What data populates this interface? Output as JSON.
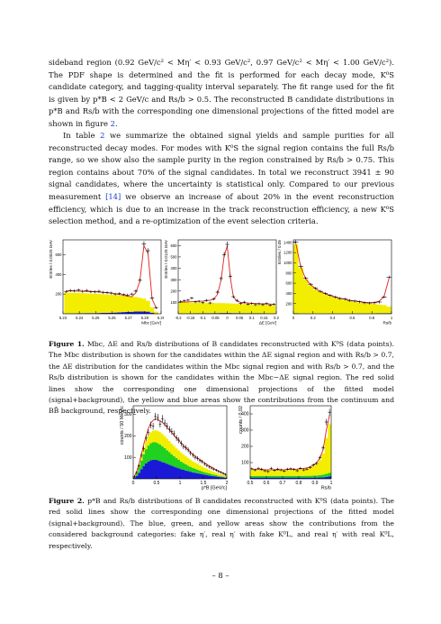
{
  "text": {
    "p1": "sideband region (0.92 GeV/c² < Mη′ < 0.93 GeV/c², 0.97 GeV/c² < Mη′ < 1.00 GeV/c²). The PDF shape is determined and the fit is performed for each decay mode, K⁰S candidate category, and tagging-quality interval separately. The fit range used for the fit is given by p*B < 2 GeV/c and Rs/b > 0.5. The reconstructed B candidate distributions in p*B and Rs/b with the corresponding one dimensional projections of the fitted model are shown in figure",
    "p1_ref": "2",
    "p1_end": ".",
    "p2_a": "In table",
    "p2_ref": "2",
    "p2_b": "we summarize the obtained signal yields and sample purities for all reconstructed decay modes. For modes with K⁰S the signal region contains the full Rs/b range, so we show also the sample purity in the region constrained by Rs/b > 0.75. This region contains about 70% of the signal candidates. In total we reconstruct 3941 ± 90 signal candidates, where the uncertainty is statistical only. Compared to our previous measurement",
    "p2_ref2": "[14]",
    "p2_c": "we observe an increase of about 20% in the event reconstruction efficiency, which is due to an increase in the track reconstruction efficiency, a new K⁰S selection method, and a re-optimization of the event selection criteria.",
    "fig1_label": "Figure 1.",
    "fig1_caption": "Mbc, ΔE and Rs/b distributions of B candidates reconstructed with K⁰S (data points). The Mbc distribution is shown for the candidates within the ΔE signal region and with Rs/b > 0.7, the ΔE distribution for the candidates within the Mbc signal region and with Rs/b > 0.7, and the Rs/b distribution is shown for the candidates within the Mbc−ΔE signal region. The red solid lines show the corresponding one dimensional projections of the fitted model (signal+background), the yellow and blue areas show the contributions from the continuum and BB̄ background, respectively.",
    "fig2_label": "Figure 2.",
    "fig2_caption": "p*B and Rs/b distributions of B candidates reconstructed with K⁰S (data points). The red solid lines show the corresponding one dimensional projections of the fitted model (signal+background). The blue, green, and yellow areas show the contributions from the considered background categories: fake η′, real η′ with fake K⁰L, and real η′ with real K⁰L, respectively.",
    "page_number": "– 8 –"
  },
  "colors": {
    "signal_fit": "#e0201e",
    "continuum": "#f3ee00",
    "bbbar": "#1a1ad6",
    "fake_etaprime": "#1a1ad6",
    "fake_KL": "#1fd21f",
    "real_KL": "#f3ee00",
    "ref_link": "#1a3fbf"
  },
  "chart_data": [
    {
      "type": "line",
      "ylabel": "Entries / 0.0025 GeV",
      "xlabel": "Mbc [GeV]",
      "xlim": [
        5.23,
        5.29
      ],
      "ylim": [
        0,
        750
      ],
      "xticks": [
        "5.23",
        "5.24",
        "5.25",
        "5.26",
        "5.27",
        "5.28",
        "5.29"
      ],
      "yticks": [
        "200",
        "400",
        "600"
      ],
      "x": [
        5.232,
        5.2345,
        5.237,
        5.2395,
        5.242,
        5.2445,
        5.247,
        5.2495,
        5.252,
        5.2545,
        5.257,
        5.2595,
        5.262,
        5.2645,
        5.267,
        5.2695,
        5.272,
        5.2745,
        5.277,
        5.2795,
        5.282,
        5.2845,
        5.287
      ],
      "data": [
        225,
        236,
        232,
        240,
        228,
        236,
        224,
        222,
        228,
        217,
        214,
        210,
        200,
        204,
        195,
        190,
        200,
        230,
        340,
        710,
        640,
        160,
        62
      ],
      "fit": [
        232,
        232,
        231,
        230,
        229,
        228,
        226,
        224,
        221,
        218,
        214,
        209,
        203,
        196,
        188,
        179,
        172,
        210,
        330,
        690,
        610,
        150,
        60
      ],
      "continuum": [
        210,
        210,
        208,
        206,
        204,
        202,
        199,
        196,
        193,
        190,
        186,
        182,
        177,
        172,
        166,
        160,
        154,
        148,
        140,
        130,
        110,
        55,
        18
      ],
      "bbbar": [
        4,
        4,
        4,
        5,
        5,
        6,
        6,
        7,
        8,
        9,
        10,
        11,
        13,
        15,
        17,
        19,
        21,
        23,
        24,
        24,
        22,
        12,
        4
      ]
    },
    {
      "type": "line",
      "ylabel": "Entries / 0.0125 GeV",
      "xlabel": "ΔE [GeV]",
      "xlim": [
        -0.2,
        0.2
      ],
      "ylim": [
        0,
        650
      ],
      "xticks": [
        "-0.2",
        "-0.15",
        "-0.1",
        "-0.05",
        "0",
        "0.05",
        "0.1",
        "0.15",
        "0.2"
      ],
      "yticks": [
        "100",
        "200",
        "300",
        "400",
        "500",
        "600"
      ],
      "x": [
        -0.19,
        -0.175,
        -0.16,
        -0.145,
        -0.13,
        -0.115,
        -0.1,
        -0.085,
        -0.07,
        -0.055,
        -0.04,
        -0.025,
        -0.0125,
        0,
        0.0125,
        0.025,
        0.04,
        0.055,
        0.07,
        0.085,
        0.1,
        0.115,
        0.13,
        0.145,
        0.16,
        0.175,
        0.19
      ],
      "data": [
        108,
        115,
        120,
        138,
        105,
        110,
        98,
        118,
        95,
        130,
        190,
        310,
        520,
        610,
        330,
        150,
        118,
        90,
        102,
        85,
        92,
        80,
        88,
        80,
        90,
        76,
        84
      ],
      "fit": [
        102,
        103,
        104,
        106,
        108,
        110,
        112,
        115,
        120,
        130,
        170,
        300,
        510,
        595,
        320,
        150,
        110,
        100,
        96,
        94,
        92,
        90,
        89,
        88,
        87,
        86,
        85
      ],
      "continuum": [
        98,
        97,
        96,
        95,
        94,
        93,
        92,
        91,
        90,
        89,
        88,
        87,
        86,
        85,
        84,
        83,
        82,
        81,
        80,
        79,
        78,
        77,
        76,
        75,
        74,
        73,
        72
      ],
      "bbbar": [
        3,
        3,
        3,
        3,
        4,
        4,
        4,
        5,
        5,
        6,
        6,
        7,
        7,
        7,
        7,
        6,
        6,
        5,
        5,
        5,
        4,
        4,
        4,
        4,
        3,
        3,
        3
      ]
    },
    {
      "type": "line",
      "ylabel": "Entries / 0.05",
      "xlabel": "Rs/b",
      "xlim": [
        0,
        1
      ],
      "ylim": [
        0,
        1450
      ],
      "xticks": [
        "0",
        "0.2",
        "0.4",
        "0.6",
        "0.8",
        "1"
      ],
      "yticks": [
        "200",
        "400",
        "600",
        "800",
        "1000",
        "1200",
        "1400"
      ],
      "x": [
        0.025,
        0.075,
        0.125,
        0.175,
        0.225,
        0.275,
        0.325,
        0.375,
        0.425,
        0.475,
        0.525,
        0.575,
        0.625,
        0.675,
        0.725,
        0.775,
        0.825,
        0.875,
        0.925,
        0.975
      ],
      "data": [
        1410,
        930,
        700,
        580,
        500,
        440,
        400,
        360,
        330,
        300,
        290,
        260,
        250,
        235,
        215,
        210,
        215,
        230,
        330,
        720
      ],
      "fit": [
        1380,
        920,
        690,
        570,
        495,
        440,
        395,
        360,
        330,
        305,
        285,
        265,
        250,
        238,
        225,
        218,
        222,
        245,
        345,
        700
      ],
      "continuum": [
        1350,
        900,
        670,
        550,
        475,
        420,
        375,
        340,
        310,
        285,
        265,
        245,
        230,
        215,
        200,
        190,
        185,
        175,
        160,
        130
      ],
      "bbbar": [
        8,
        6,
        6,
        5,
        5,
        5,
        5,
        5,
        5,
        5,
        5,
        5,
        5,
        5,
        6,
        6,
        7,
        8,
        9,
        10
      ]
    },
    {
      "type": "area",
      "ylabel": "counts / 50 MeV/c",
      "xlabel": "p*B [GeV/c]",
      "xlim": [
        0,
        2
      ],
      "ylim": [
        0,
        340
      ],
      "xticks": [
        "0",
        "0.5",
        "1",
        "1.5",
        "2"
      ],
      "yticks": [
        "100",
        "200",
        "300"
      ],
      "x": [
        0.025,
        0.075,
        0.125,
        0.175,
        0.225,
        0.275,
        0.325,
        0.375,
        0.425,
        0.475,
        0.525,
        0.575,
        0.625,
        0.675,
        0.725,
        0.775,
        0.825,
        0.875,
        0.925,
        0.975,
        1.025,
        1.075,
        1.125,
        1.175,
        1.225,
        1.275,
        1.325,
        1.375,
        1.425,
        1.475,
        1.525,
        1.575,
        1.625,
        1.675,
        1.725,
        1.775,
        1.825,
        1.875,
        1.925,
        1.975
      ],
      "data": [
        10,
        30,
        60,
        110,
        140,
        190,
        215,
        250,
        245,
        290,
        285,
        255,
        280,
        260,
        245,
        230,
        220,
        210,
        190,
        180,
        165,
        150,
        145,
        135,
        120,
        110,
        100,
        95,
        85,
        80,
        70,
        62,
        55,
        50,
        45,
        40,
        34,
        30,
        25,
        20
      ],
      "fit": [
        12,
        35,
        70,
        115,
        160,
        200,
        235,
        260,
        272,
        278,
        276,
        270,
        262,
        252,
        240,
        228,
        215,
        202,
        190,
        178,
        166,
        155,
        144,
        134,
        124,
        114,
        105,
        97,
        89,
        81,
        74,
        67,
        60,
        54,
        48,
        42,
        36,
        31,
        26,
        21
      ],
      "fake_etaprime": [
        5,
        14,
        28,
        45,
        60,
        72,
        80,
        86,
        88,
        88,
        86,
        83,
        79,
        75,
        70,
        66,
        61,
        57,
        53,
        49,
        45,
        42,
        39,
        36,
        33,
        30,
        28,
        26,
        24,
        22,
        20,
        18,
        16,
        14,
        12,
        11,
        9,
        8,
        7,
        5
      ],
      "fake_KL": [
        4,
        12,
        25,
        40,
        54,
        66,
        75,
        80,
        82,
        82,
        80,
        77,
        73,
        68,
        63,
        58,
        53,
        48,
        44,
        40,
        36,
        32,
        29,
        26,
        23,
        21,
        19,
        17,
        15,
        13,
        11,
        10,
        9,
        8,
        7,
        6,
        5,
        4,
        3,
        3
      ],
      "real_KL": [
        2,
        6,
        12,
        20,
        30,
        38,
        45,
        50,
        54,
        56,
        57,
        57,
        57,
        56,
        54,
        52,
        50,
        48,
        45,
        43,
        41,
        39,
        37,
        35,
        33,
        31,
        29,
        27,
        25,
        23,
        21,
        19,
        17,
        15,
        13,
        12,
        10,
        9,
        8,
        7
      ]
    },
    {
      "type": "area",
      "ylabel": "counts / 0.02",
      "xlabel": "Rs/b",
      "xlim": [
        0.5,
        1
      ],
      "ylim": [
        0,
        450
      ],
      "xticks": [
        "0.5",
        "0.6",
        "0.7",
        "0.8",
        "0.9",
        "1"
      ],
      "yticks": [
        "100",
        "200",
        "300",
        "400"
      ],
      "x": [
        0.51,
        0.53,
        0.55,
        0.57,
        0.59,
        0.61,
        0.63,
        0.65,
        0.67,
        0.69,
        0.71,
        0.73,
        0.75,
        0.77,
        0.79,
        0.81,
        0.83,
        0.85,
        0.87,
        0.89,
        0.91,
        0.93,
        0.95,
        0.97,
        0.99
      ],
      "data": [
        62,
        55,
        65,
        60,
        50,
        45,
        65,
        52,
        60,
        55,
        48,
        60,
        62,
        58,
        50,
        65,
        55,
        60,
        70,
        85,
        95,
        130,
        190,
        350,
        410
      ],
      "fit": [
        58,
        57,
        57,
        56,
        56,
        56,
        56,
        56,
        56,
        56,
        56,
        57,
        58,
        59,
        60,
        62,
        64,
        68,
        74,
        84,
        100,
        128,
        180,
        300,
        395
      ],
      "fake_etaprime": [
        8,
        8,
        8,
        8,
        8,
        8,
        8,
        8,
        8,
        8,
        8,
        8,
        8,
        8,
        8,
        8,
        8,
        8,
        8,
        8,
        8,
        9,
        10,
        12,
        14
      ],
      "fake_KL": [
        10,
        10,
        10,
        10,
        10,
        10,
        10,
        10,
        10,
        10,
        10,
        10,
        10,
        10,
        10,
        10,
        10,
        11,
        11,
        12,
        13,
        14,
        16,
        19,
        22
      ],
      "real_KL": [
        36,
        35,
        35,
        34,
        34,
        34,
        34,
        34,
        34,
        34,
        34,
        35,
        36,
        37,
        38,
        40,
        42,
        45,
        50,
        58,
        70,
        92,
        130,
        220,
        300
      ]
    }
  ]
}
